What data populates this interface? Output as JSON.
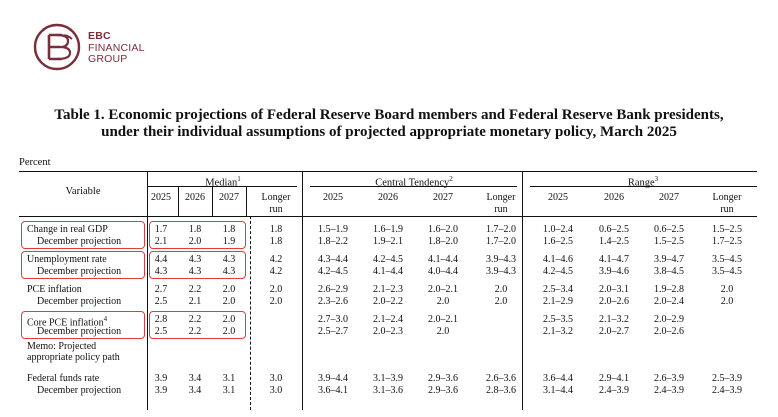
{
  "brand": {
    "line1": "EBC",
    "line2": "FINANCIAL",
    "line3": "GROUP",
    "color": "#7a2e3a",
    "icon": "ebc-logo-icon"
  },
  "title_line1": "Table 1. Economic projections of Federal Reserve Board members and Federal Reserve Bank presidents,",
  "title_line2": "under their individual assumptions of projected appropriate monetary policy, March 2025",
  "unit_label": "Percent",
  "headers": {
    "variable": "Variable",
    "median": "Median",
    "central": "Central Tendency",
    "range": "Range",
    "median_sup": "1",
    "central_sup": "2",
    "range_sup": "3",
    "years": [
      "2025",
      "2026",
      "2027"
    ],
    "longer_l1": "Longer",
    "longer_l2": "run"
  },
  "highlight_color": "#e23b3b",
  "rows": [
    {
      "label": "Change in real GDP",
      "indent": false,
      "median": [
        "1.7",
        "1.8",
        "1.8",
        "1.8"
      ],
      "central": [
        "1.5–1.9",
        "1.6–1.9",
        "1.6–2.0",
        "1.7–2.0"
      ],
      "range": [
        "1.0–2.4",
        "0.6–2.5",
        "0.6–2.5",
        "1.5–2.5"
      ]
    },
    {
      "label": "December projection",
      "indent": true,
      "median": [
        "2.1",
        "2.0",
        "1.9",
        "1.8"
      ],
      "central": [
        "1.8–2.2",
        "1.9–2.1",
        "1.8–2.0",
        "1.7–2.0"
      ],
      "range": [
        "1.6–2.5",
        "1.4–2.5",
        "1.5–2.5",
        "1.7–2.5"
      ]
    },
    {
      "label": "Unemployment rate",
      "indent": false,
      "median": [
        "4.4",
        "4.3",
        "4.3",
        "4.2"
      ],
      "central": [
        "4.3–4.4",
        "4.2–4.5",
        "4.1–4.4",
        "3.9–4.3"
      ],
      "range": [
        "4.1–4.6",
        "4.1–4.7",
        "3.9–4.7",
        "3.5–4.5"
      ]
    },
    {
      "label": "December projection",
      "indent": true,
      "median": [
        "4.3",
        "4.3",
        "4.3",
        "4.2"
      ],
      "central": [
        "4.2–4.5",
        "4.1–4.4",
        "4.0–4.4",
        "3.9–4.3"
      ],
      "range": [
        "4.2–4.5",
        "3.9–4.6",
        "3.8–4.5",
        "3.5–4.5"
      ]
    },
    {
      "label": "PCE inflation",
      "indent": false,
      "median": [
        "2.7",
        "2.2",
        "2.0",
        "2.0"
      ],
      "central": [
        "2.6–2.9",
        "2.1–2.3",
        "2.0–2.1",
        "2.0"
      ],
      "range": [
        "2.5–3.4",
        "2.0–3.1",
        "1.9–2.8",
        "2.0"
      ]
    },
    {
      "label": "December projection",
      "indent": true,
      "median": [
        "2.5",
        "2.1",
        "2.0",
        "2.0"
      ],
      "central": [
        "2.3–2.6",
        "2.0–2.2",
        "2.0",
        "2.0"
      ],
      "range": [
        "2.1–2.9",
        "2.0–2.6",
        "2.0–2.4",
        "2.0"
      ]
    },
    {
      "label": "Core PCE inflation",
      "sup": "4",
      "indent": false,
      "median": [
        "2.8",
        "2.2",
        "2.0",
        ""
      ],
      "central": [
        "2.7–3.0",
        "2.1–2.4",
        "2.0–2.1",
        ""
      ],
      "range": [
        "2.5–3.5",
        "2.1–3.2",
        "2.0–2.9",
        ""
      ]
    },
    {
      "label": "December projection",
      "indent": true,
      "median": [
        "2.5",
        "2.2",
        "2.0",
        ""
      ],
      "central": [
        "2.5–2.7",
        "2.0–2.3",
        "2.0",
        ""
      ],
      "range": [
        "2.1–3.2",
        "2.0–2.7",
        "2.0–2.6",
        ""
      ]
    },
    {
      "label": "Federal funds rate",
      "indent": false,
      "median": [
        "3.9",
        "3.4",
        "3.1",
        "3.0"
      ],
      "central": [
        "3.9–4.4",
        "3.1–3.9",
        "2.9–3.6",
        "2.6–3.6"
      ],
      "range": [
        "3.6–4.4",
        "2.9–4.1",
        "2.6–3.9",
        "2.5–3.9"
      ]
    },
    {
      "label": "December projection",
      "indent": true,
      "median": [
        "3.9",
        "3.4",
        "3.1",
        "3.0"
      ],
      "central": [
        "3.6–4.1",
        "3.1–3.6",
        "2.9–3.6",
        "2.8–3.6"
      ],
      "range": [
        "3.1–4.4",
        "2.4–3.9",
        "2.4–3.9",
        "2.4–3.9"
      ]
    }
  ],
  "memo_line1": "Memo: Projected",
  "memo_line2": "appropriate policy path"
}
